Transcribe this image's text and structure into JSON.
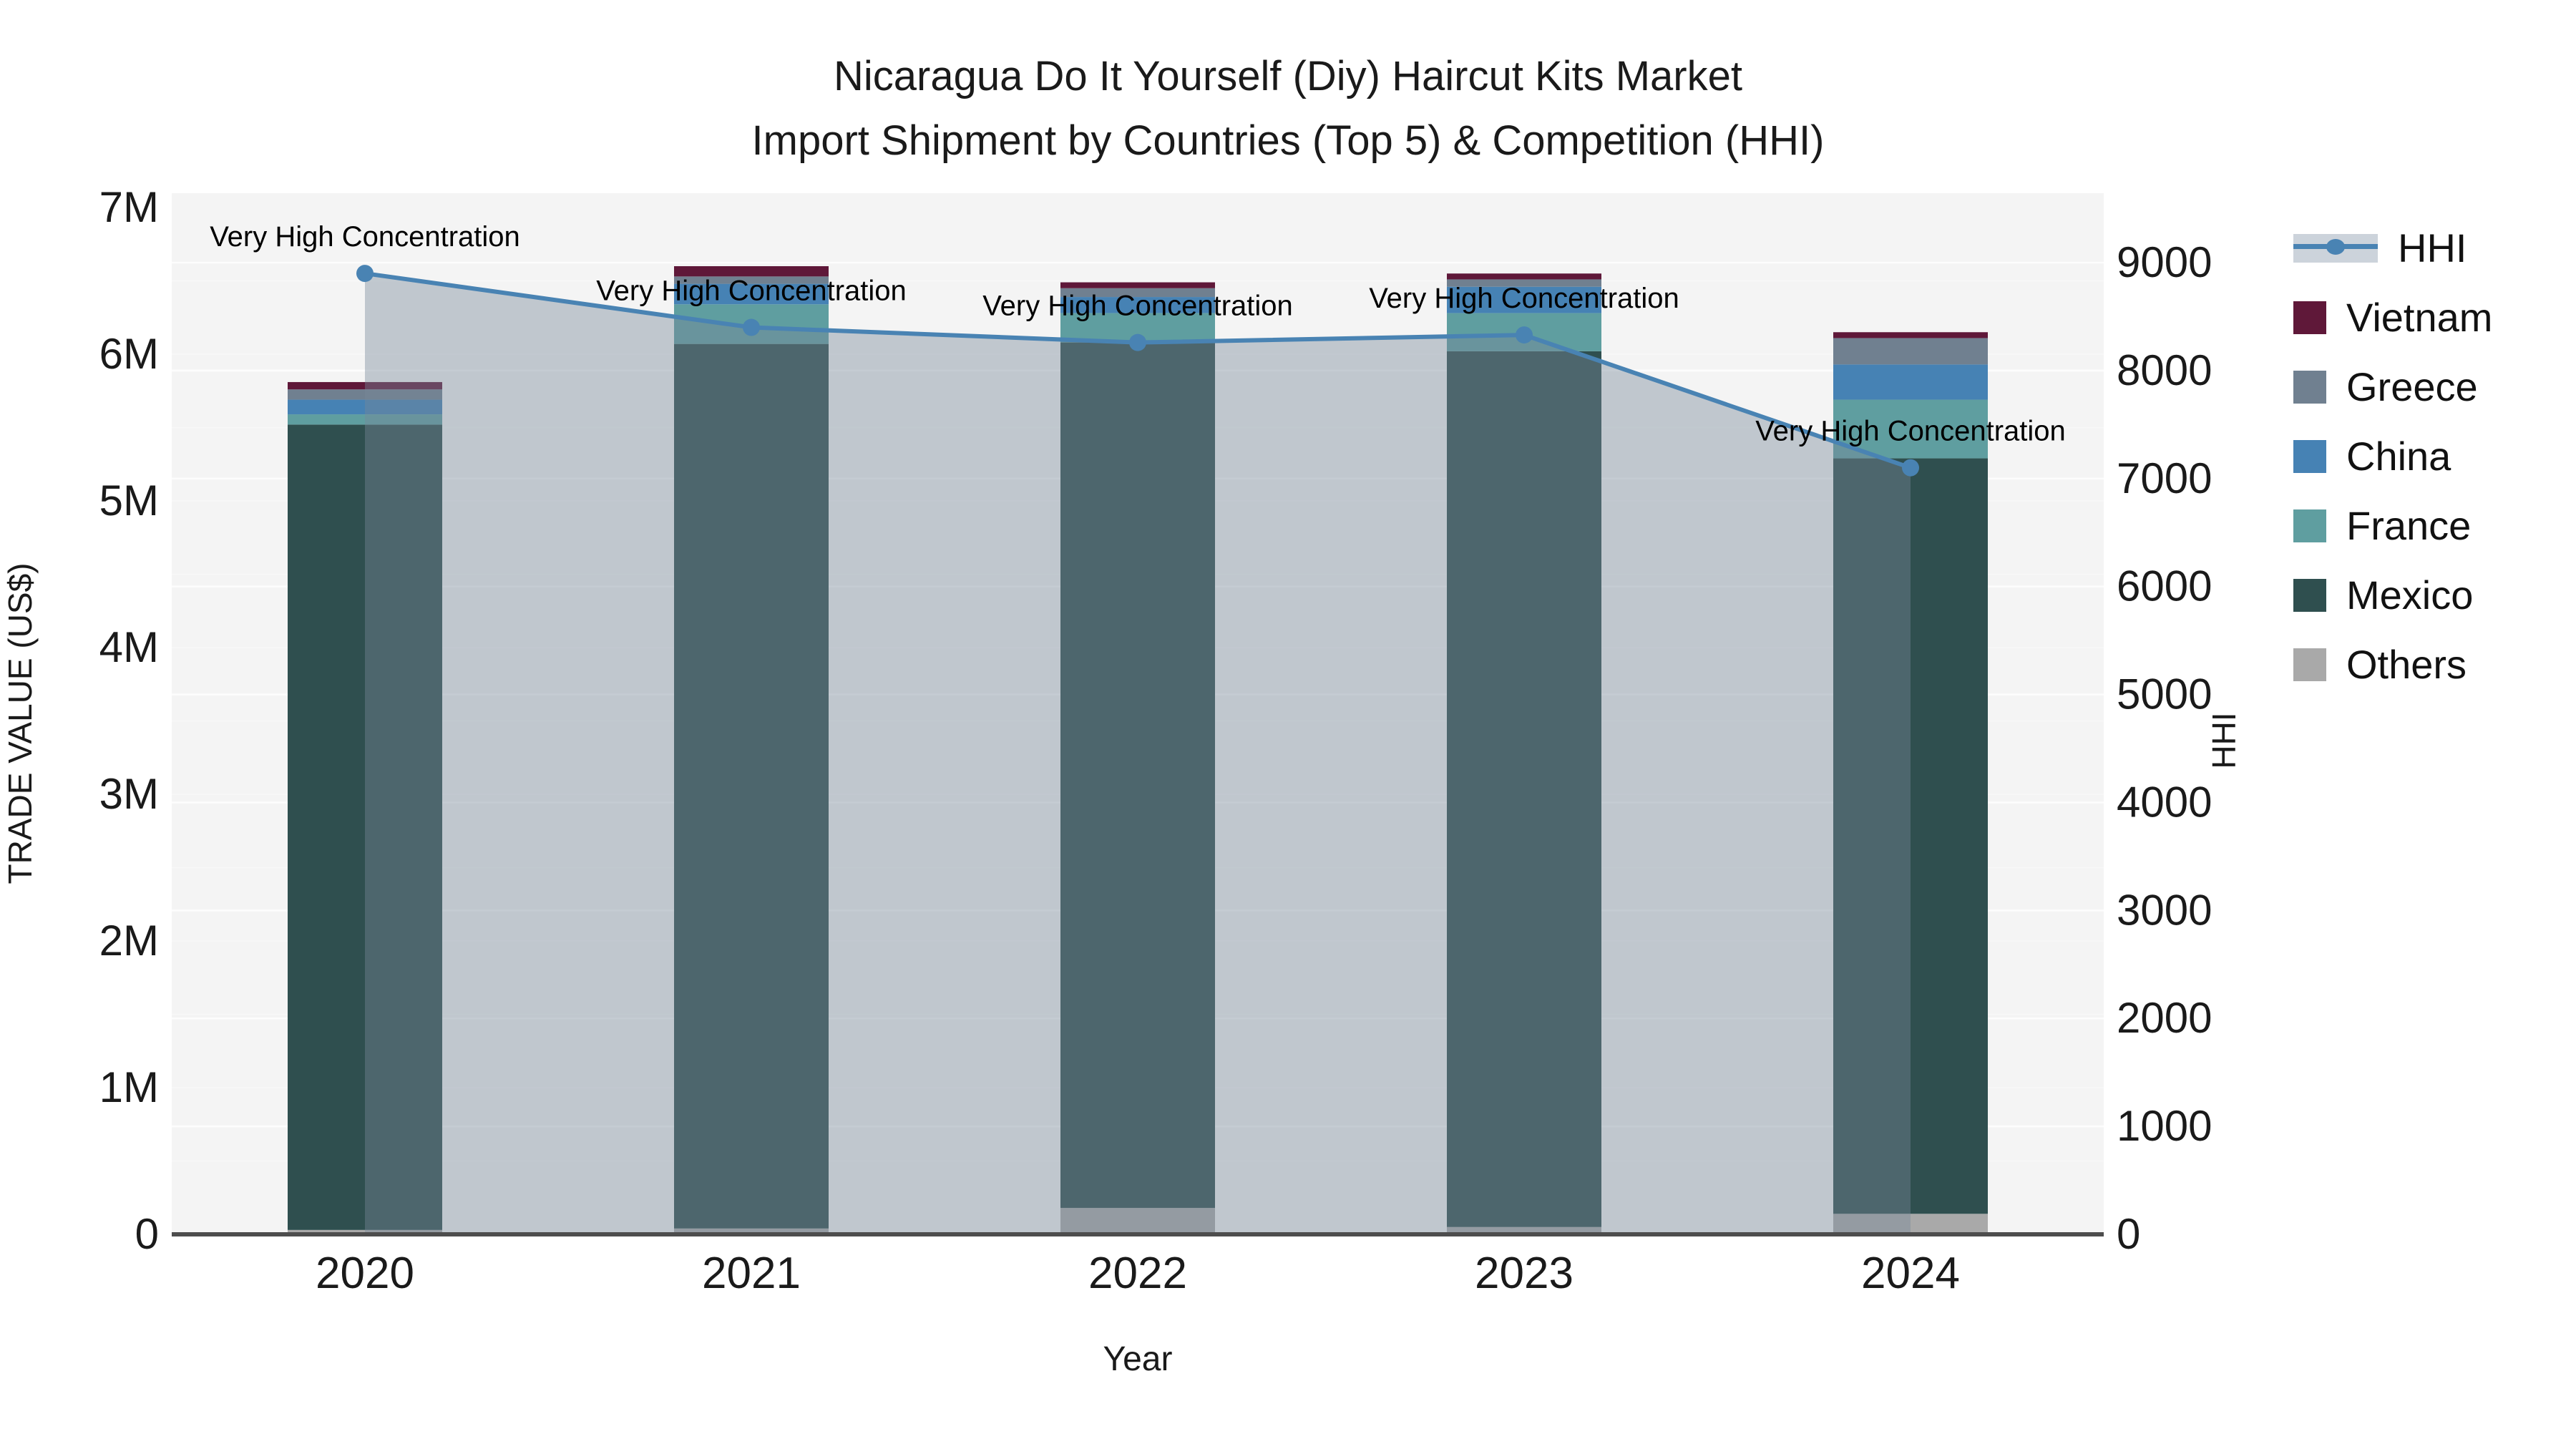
{
  "title": {
    "line1": "Nicaragua Do It Yourself (Diy) Haircut Kits Market",
    "line2": "Import Shipment by Countries (Top 5) & Competition (HHI)"
  },
  "axes": {
    "left_title": "TRADE VALUE (US$)",
    "right_title": "HHI",
    "bottom_title": "Year",
    "left_ticks": [
      "0",
      "1M",
      "2M",
      "3M",
      "4M",
      "5M",
      "6M",
      "7M"
    ],
    "right_ticks": [
      "0",
      "1000",
      "2000",
      "3000",
      "4000",
      "5000",
      "6000",
      "7000",
      "8000",
      "9000"
    ]
  },
  "chart_data": {
    "type": "combo-stacked-bar-line",
    "categories": [
      "2020",
      "2021",
      "2022",
      "2023",
      "2024"
    ],
    "bar_unit": "US$ millions",
    "bar_series": [
      {
        "name": "Others",
        "color": "#a9a9a9",
        "values": [
          0.03,
          0.04,
          0.18,
          0.05,
          0.14
        ]
      },
      {
        "name": "Mexico",
        "color": "#2f4f4f",
        "values": [
          5.49,
          6.03,
          5.9,
          5.97,
          5.15
        ]
      },
      {
        "name": "France",
        "color": "#5f9ea0",
        "values": [
          0.07,
          0.27,
          0.2,
          0.26,
          0.4
        ]
      },
      {
        "name": "China",
        "color": "#4682b4",
        "values": [
          0.1,
          0.14,
          0.11,
          0.18,
          0.24
        ]
      },
      {
        "name": "Greece",
        "color": "#708090",
        "values": [
          0.07,
          0.05,
          0.06,
          0.05,
          0.18
        ]
      },
      {
        "name": "Vietnam",
        "color": "#5f1839",
        "values": [
          0.05,
          0.07,
          0.04,
          0.04,
          0.04
        ]
      }
    ],
    "line_series": {
      "name": "HHI",
      "color": "#4983b3",
      "area_fill": "rgba(119,136,153,0.42)",
      "values": [
        8900,
        8400,
        8260,
        8330,
        7100
      ]
    },
    "annotations": [
      {
        "text": "Very High Concentration",
        "category": "2020"
      },
      {
        "text": "Very High Concentration",
        "category": "2021"
      },
      {
        "text": "Very High Concentration",
        "category": "2022"
      },
      {
        "text": "Very High Concentration",
        "category": "2023"
      },
      {
        "text": "Very High Concentration",
        "category": "2024"
      }
    ],
    "left_axis": {
      "label": "TRADE VALUE (US$)",
      "min": 0,
      "max": 7000000
    },
    "right_axis": {
      "label": "HHI",
      "min": 0,
      "max": 9000
    },
    "plot_background": "#f4f4f4",
    "grid_color": "#ffffff",
    "legend_position": "right"
  },
  "legend": {
    "items": [
      {
        "label": "HHI",
        "type": "line",
        "color": "#4983b3"
      },
      {
        "label": "Vietnam",
        "type": "square",
        "color": "#5f1839"
      },
      {
        "label": "Greece",
        "type": "square",
        "color": "#708090"
      },
      {
        "label": "China",
        "type": "square",
        "color": "#4682b4"
      },
      {
        "label": "France",
        "type": "square",
        "color": "#5f9ea0"
      },
      {
        "label": "Mexico",
        "type": "square",
        "color": "#2f4f4f"
      },
      {
        "label": "Others",
        "type": "square",
        "color": "#a9a9a9"
      }
    ]
  }
}
